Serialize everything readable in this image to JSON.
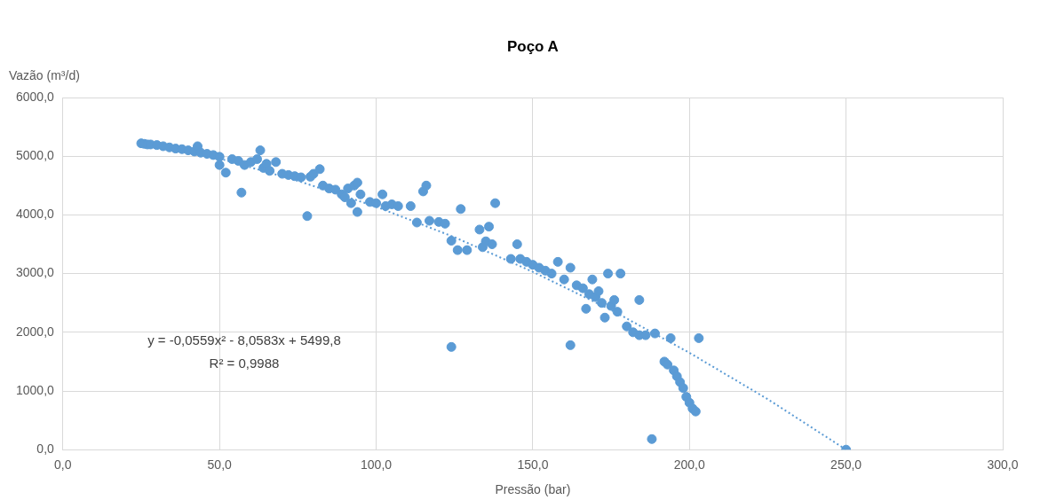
{
  "chart_data": {
    "type": "scatter",
    "title": "Poço A",
    "xlabel": "Pressão (bar)",
    "ylabel": "Vazão (m³/d)",
    "annotations": [
      "y = -0,0559x² - 8,0583x + 5499,8",
      "R² = 0,9988"
    ],
    "xlim": [
      0,
      300
    ],
    "ylim": [
      0,
      6000
    ],
    "xticks": [
      {
        "value": 0,
        "label": "0,0"
      },
      {
        "value": 50,
        "label": "50,0"
      },
      {
        "value": 100,
        "label": "100,0"
      },
      {
        "value": 150,
        "label": "150,0"
      },
      {
        "value": 200,
        "label": "200,0"
      },
      {
        "value": 250,
        "label": "250,0"
      },
      {
        "value": 300,
        "label": "300,0"
      }
    ],
    "yticks": [
      {
        "value": 0,
        "label": "0,0"
      },
      {
        "value": 1000,
        "label": "1000,0"
      },
      {
        "value": 2000,
        "label": "2000,0"
      },
      {
        "value": 3000,
        "label": "3000,0"
      },
      {
        "value": 4000,
        "label": "4000,0"
      },
      {
        "value": 5000,
        "label": "5000,0"
      },
      {
        "value": 6000,
        "label": "6000,0"
      }
    ],
    "grid": true,
    "marker": "circle",
    "series": [
      {
        "color": "#5b9bd5",
        "x": [
          25,
          26,
          27,
          28,
          30,
          32,
          34,
          36,
          38,
          40,
          42,
          43,
          44,
          46,
          48,
          50,
          50,
          52,
          54,
          56,
          57,
          58,
          60,
          62,
          63,
          64,
          65,
          66,
          68,
          70,
          72,
          74,
          76,
          78,
          79,
          80,
          82,
          83,
          85,
          87,
          89,
          90,
          91,
          92,
          93,
          94,
          94,
          95,
          98,
          100,
          102,
          103,
          105,
          107,
          111,
          113,
          115,
          116,
          117,
          120,
          122,
          124,
          124,
          126,
          127,
          129,
          133,
          134,
          135,
          136,
          137,
          138,
          143,
          145,
          146,
          148,
          150,
          152,
          154,
          156,
          158,
          160,
          162,
          162,
          164,
          166,
          167,
          168,
          169,
          170,
          171,
          172,
          173,
          174,
          175,
          176,
          177,
          178,
          180,
          182,
          184,
          184,
          186,
          188,
          189,
          192,
          193,
          194,
          195,
          196,
          197,
          198,
          199,
          200,
          201,
          202,
          203,
          250
        ],
        "values": [
          5220,
          5210,
          5200,
          5200,
          5190,
          5170,
          5150,
          5130,
          5120,
          5100,
          5080,
          5170,
          5060,
          5040,
          5020,
          4990,
          4850,
          4720,
          4950,
          4920,
          4380,
          4850,
          4900,
          4950,
          5100,
          4800,
          4870,
          4750,
          4900,
          4700,
          4680,
          4660,
          4640,
          3980,
          4650,
          4700,
          4780,
          4500,
          4450,
          4430,
          4350,
          4300,
          4450,
          4200,
          4500,
          4550,
          4050,
          4350,
          4220,
          4200,
          4350,
          4150,
          4180,
          4150,
          4150,
          3870,
          4400,
          4500,
          3900,
          3880,
          3850,
          3560,
          1750,
          3400,
          4100,
          3400,
          3750,
          3450,
          3550,
          3800,
          3500,
          4200,
          3250,
          3500,
          3250,
          3200,
          3150,
          3100,
          3050,
          3000,
          3200,
          2900,
          3100,
          1780,
          2800,
          2750,
          2400,
          2650,
          2900,
          2600,
          2700,
          2500,
          2250,
          3000,
          2450,
          2550,
          2350,
          3000,
          2100,
          2000,
          1950,
          2550,
          1950,
          180,
          1980,
          1500,
          1450,
          1900,
          1350,
          1250,
          1150,
          1050,
          900,
          800,
          700,
          650,
          1900,
          0
        ]
      },
      {
        "type": "line",
        "line_style": "dotted",
        "marker": "none",
        "color": "#5b9bd5",
        "x": [
          25,
          50,
          75,
          100,
          125,
          150,
          175,
          200,
          225,
          250
        ],
        "values": [
          5260,
          4960,
          4580,
          4140,
          3620,
          3030,
          2380,
          1650,
          860,
          0
        ]
      }
    ]
  }
}
